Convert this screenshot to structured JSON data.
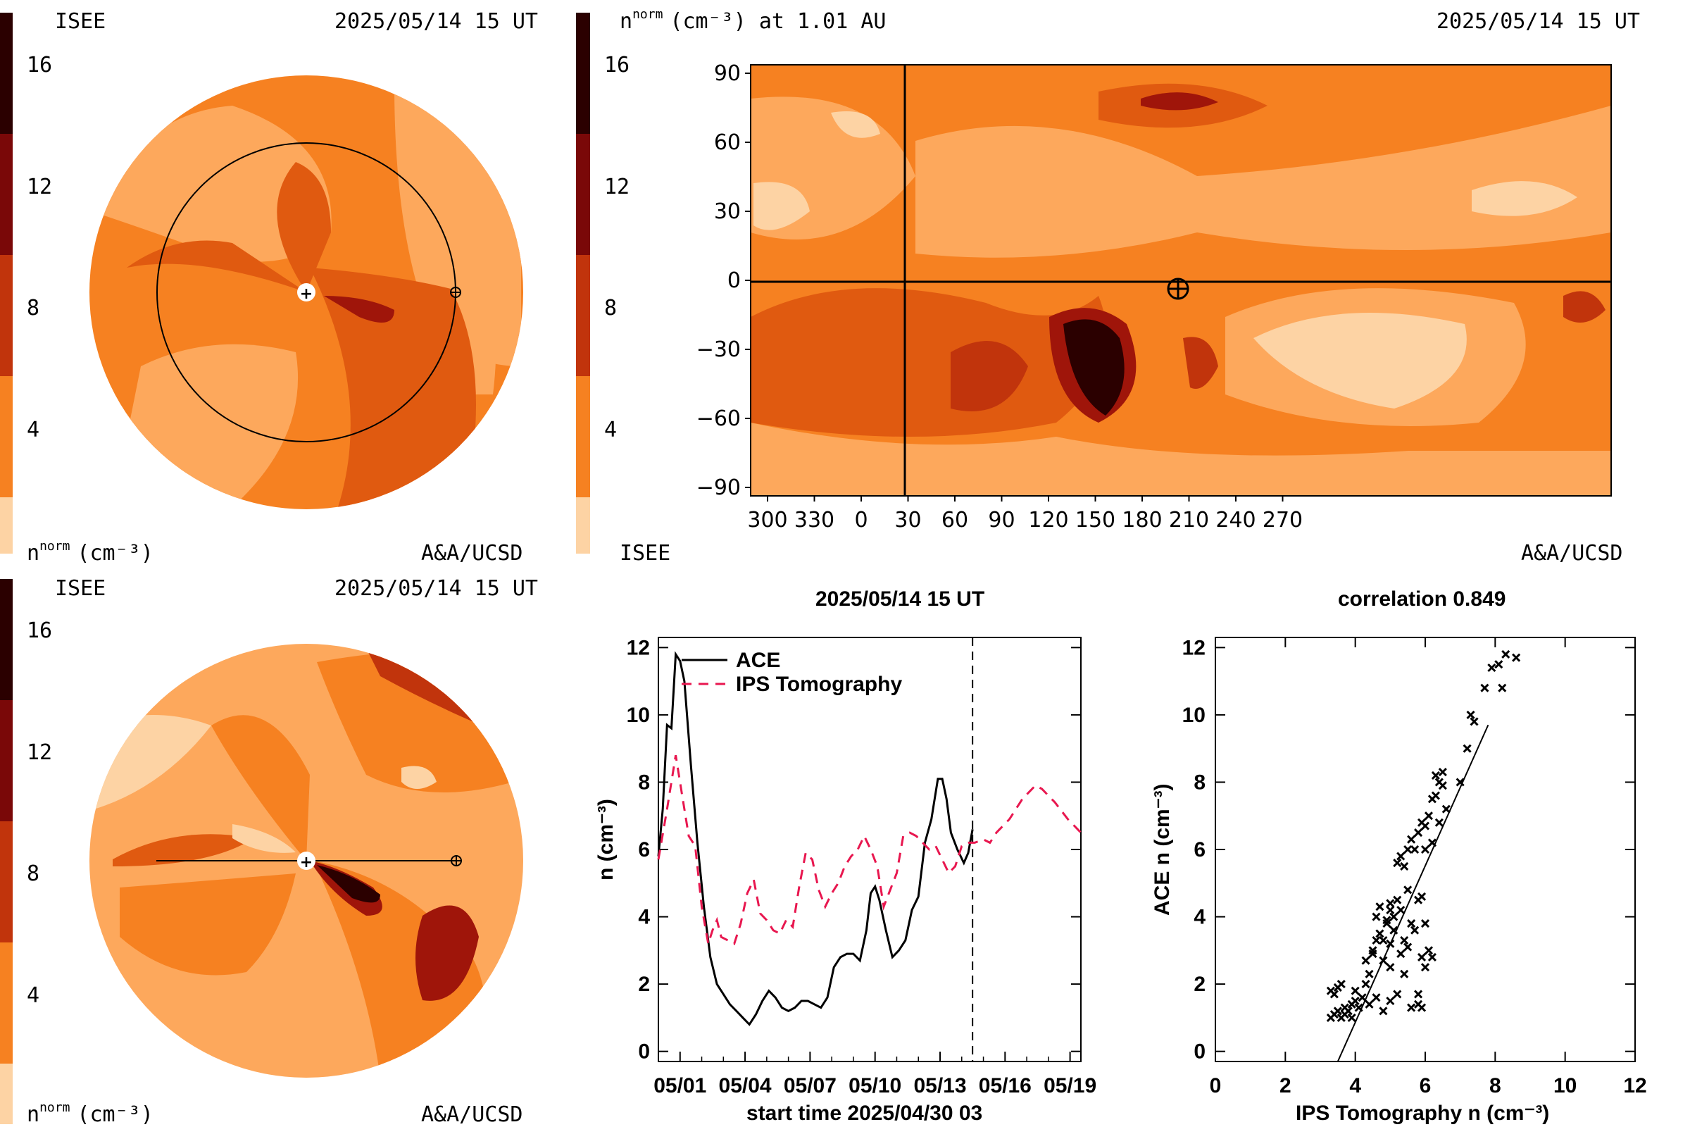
{
  "colors": {
    "scale": [
      "#fdd3a4",
      "#fda85c",
      "#f68121",
      "#e05a10",
      "#c1340c",
      "#9f150a",
      "#7a0808",
      "#520404",
      "#2b0000"
    ],
    "ips_line": "#e8174f",
    "ace_line": "#000000"
  },
  "panels": {
    "top_left": {
      "org": "ISEE",
      "date": "2025/05/14 15 UT",
      "credit": "A&A/UCSD",
      "unit": "n",
      "unit_sup": "norm",
      "unit_tail": "(cm⁻³)",
      "scale_ticks": [
        "16",
        "12",
        "8",
        "4"
      ]
    },
    "top_right": {
      "title_n": "n",
      "title_sup": "norm",
      "title_tail": "(cm⁻³) at 1.01 AU",
      "date": "2025/05/14 15 UT",
      "org": "ISEE",
      "credit": "A&A/UCSD",
      "scale_ticks": [
        "16",
        "12",
        "8",
        "4"
      ],
      "x_ticks": [
        "300",
        "330",
        "0",
        "30",
        "60",
        "90",
        "120",
        "150",
        "180",
        "210",
        "240",
        "270"
      ],
      "y_ticks": [
        "90",
        "60",
        "30",
        "0",
        "−30",
        "−60",
        "−90"
      ]
    },
    "bottom_left": {
      "org": "ISEE",
      "date": "2025/05/14 15 UT",
      "credit": "A&A/UCSD",
      "unit": "n",
      "unit_sup": "norm",
      "unit_tail": "(cm⁻³)",
      "scale_ticks": [
        "16",
        "12",
        "8",
        "4"
      ]
    }
  },
  "chart_data": [
    {
      "type": "line",
      "title": "2025/05/14 15 UT",
      "xlabel": "start time 2025/04/30 03",
      "ylabel": "n (cm⁻³)",
      "x_ticks": [
        "05/01",
        "05/04",
        "05/07",
        "05/10",
        "05/13",
        "05/16",
        "05/19"
      ],
      "y_ticks": [
        "0",
        "2",
        "4",
        "6",
        "8",
        "10",
        "12"
      ],
      "xlim": [
        0,
        19.5
      ],
      "ylim": [
        -0.3,
        12.3
      ],
      "marker_day": 14.5,
      "series": [
        {
          "name": "ACE",
          "style": "solid",
          "points": [
            [
              0,
              5.8
            ],
            [
              0.2,
              7.2
            ],
            [
              0.4,
              9.7
            ],
            [
              0.6,
              9.6
            ],
            [
              0.8,
              11.8
            ],
            [
              1.0,
              11.6
            ],
            [
              1.2,
              11.0
            ],
            [
              1.5,
              8.5
            ],
            [
              1.8,
              6.2
            ],
            [
              2.1,
              4.3
            ],
            [
              2.4,
              2.8
            ],
            [
              2.7,
              2.0
            ],
            [
              3.0,
              1.7
            ],
            [
              3.3,
              1.4
            ],
            [
              3.6,
              1.2
            ],
            [
              3.9,
              1.0
            ],
            [
              4.2,
              0.8
            ],
            [
              4.5,
              1.1
            ],
            [
              4.8,
              1.5
            ],
            [
              5.1,
              1.8
            ],
            [
              5.4,
              1.6
            ],
            [
              5.7,
              1.3
            ],
            [
              6.0,
              1.2
            ],
            [
              6.3,
              1.3
            ],
            [
              6.6,
              1.5
            ],
            [
              6.9,
              1.5
            ],
            [
              7.2,
              1.4
            ],
            [
              7.5,
              1.3
            ],
            [
              7.8,
              1.6
            ],
            [
              8.1,
              2.5
            ],
            [
              8.4,
              2.8
            ],
            [
              8.7,
              2.9
            ],
            [
              9.0,
              2.9
            ],
            [
              9.3,
              2.7
            ],
            [
              9.6,
              3.6
            ],
            [
              9.8,
              4.7
            ],
            [
              10.0,
              4.9
            ],
            [
              10.2,
              4.5
            ],
            [
              10.5,
              3.6
            ],
            [
              10.8,
              2.8
            ],
            [
              11.1,
              3.0
            ],
            [
              11.4,
              3.3
            ],
            [
              11.7,
              4.2
            ],
            [
              12.0,
              4.6
            ],
            [
              12.3,
              6.2
            ],
            [
              12.6,
              6.9
            ],
            [
              12.9,
              8.1
            ],
            [
              13.1,
              8.1
            ],
            [
              13.3,
              7.5
            ],
            [
              13.5,
              6.5
            ],
            [
              13.8,
              6.0
            ],
            [
              14.1,
              5.6
            ],
            [
              14.3,
              5.9
            ],
            [
              14.5,
              6.6
            ]
          ]
        },
        {
          "name": "IPS Tomography",
          "style": "dashed",
          "points": [
            [
              0,
              5.7
            ],
            [
              0.4,
              7.2
            ],
            [
              0.8,
              8.8
            ],
            [
              1.1,
              7.6
            ],
            [
              1.4,
              6.4
            ],
            [
              1.7,
              6.1
            ],
            [
              2.0,
              4.3
            ],
            [
              2.3,
              3.2
            ],
            [
              2.5,
              3.6
            ],
            [
              2.7,
              3.9
            ],
            [
              2.9,
              3.4
            ],
            [
              3.2,
              3.3
            ],
            [
              3.5,
              3.2
            ],
            [
              3.8,
              3.8
            ],
            [
              4.1,
              4.7
            ],
            [
              4.4,
              5.1
            ],
            [
              4.7,
              4.1
            ],
            [
              5.0,
              3.9
            ],
            [
              5.3,
              3.6
            ],
            [
              5.6,
              3.5
            ],
            [
              5.9,
              3.9
            ],
            [
              6.2,
              3.7
            ],
            [
              6.5,
              4.9
            ],
            [
              6.8,
              5.9
            ],
            [
              7.1,
              5.7
            ],
            [
              7.4,
              4.8
            ],
            [
              7.7,
              4.3
            ],
            [
              8.0,
              4.7
            ],
            [
              8.3,
              5.0
            ],
            [
              8.6,
              5.5
            ],
            [
              8.9,
              5.8
            ],
            [
              9.2,
              6.0
            ],
            [
              9.5,
              6.4
            ],
            [
              9.8,
              6.0
            ],
            [
              10.1,
              5.5
            ],
            [
              10.4,
              4.3
            ],
            [
              10.7,
              4.8
            ],
            [
              11.0,
              5.3
            ],
            [
              11.3,
              6.4
            ],
            [
              11.6,
              6.5
            ],
            [
              11.9,
              6.4
            ],
            [
              12.2,
              6.2
            ],
            [
              12.5,
              6.0
            ],
            [
              12.8,
              6.1
            ],
            [
              13.1,
              5.7
            ],
            [
              13.4,
              5.3
            ],
            [
              13.7,
              5.5
            ],
            [
              14.0,
              6.1
            ],
            [
              14.3,
              6.2
            ],
            [
              14.6,
              6.2
            ],
            [
              15.0,
              6.3
            ],
            [
              15.3,
              6.2
            ],
            [
              15.6,
              6.5
            ],
            [
              16.2,
              6.9
            ],
            [
              16.8,
              7.5
            ],
            [
              17.4,
              7.9
            ],
            [
              17.7,
              7.8
            ],
            [
              18.3,
              7.4
            ],
            [
              18.9,
              6.9
            ],
            [
              19.5,
              6.5
            ]
          ]
        }
      ]
    },
    {
      "type": "scatter",
      "title": "correlation 0.849",
      "xlabel": "IPS Tomography n (cm⁻³)",
      "ylabel": "ACE n (cm⁻³)",
      "x_ticks": [
        "0",
        "2",
        "4",
        "6",
        "8",
        "10",
        "12"
      ],
      "y_ticks": [
        "0",
        "2",
        "4",
        "6",
        "8",
        "10",
        "12"
      ],
      "xlim": [
        0,
        12
      ],
      "ylim": [
        -0.3,
        12.3
      ],
      "fit": [
        [
          3.5,
          -0.3
        ],
        [
          7.8,
          9.7
        ]
      ],
      "points": [
        [
          3.3,
          1.8
        ],
        [
          3.4,
          1.7
        ],
        [
          3.5,
          1.9
        ],
        [
          3.3,
          1.0
        ],
        [
          3.4,
          1.1
        ],
        [
          3.5,
          1.2
        ],
        [
          3.6,
          1.0
        ],
        [
          3.7,
          1.3
        ],
        [
          3.8,
          1.2
        ],
        [
          3.9,
          1.4
        ],
        [
          4.0,
          1.5
        ],
        [
          4.1,
          1.3
        ],
        [
          3.6,
          2.0
        ],
        [
          3.7,
          1.1
        ],
        [
          3.9,
          1.0
        ],
        [
          4.0,
          1.8
        ],
        [
          4.2,
          1.6
        ],
        [
          4.3,
          2.0
        ],
        [
          4.4,
          2.3
        ],
        [
          4.5,
          2.9
        ],
        [
          4.6,
          3.3
        ],
        [
          4.7,
          3.5
        ],
        [
          4.8,
          3.3
        ],
        [
          4.9,
          3.8
        ],
        [
          5.0,
          3.2
        ],
        [
          5.1,
          4.0
        ],
        [
          4.6,
          4.0
        ],
        [
          4.7,
          4.3
        ],
        [
          5.0,
          4.4
        ],
        [
          5.2,
          4.5
        ],
        [
          5.3,
          4.2
        ],
        [
          5.5,
          4.8
        ],
        [
          5.6,
          3.8
        ],
        [
          5.7,
          3.6
        ],
        [
          5.8,
          4.5
        ],
        [
          5.9,
          4.6
        ],
        [
          6.0,
          3.8
        ],
        [
          6.1,
          3.0
        ],
        [
          6.2,
          2.8
        ],
        [
          5.9,
          2.8
        ],
        [
          6.0,
          2.5
        ],
        [
          5.8,
          1.7
        ],
        [
          5.6,
          1.3
        ],
        [
          5.8,
          1.4
        ],
        [
          5.9,
          1.3
        ],
        [
          5.4,
          2.3
        ],
        [
          5.2,
          1.7
        ],
        [
          5.0,
          1.5
        ],
        [
          4.8,
          1.2
        ],
        [
          4.6,
          1.6
        ],
        [
          4.4,
          1.4
        ],
        [
          4.3,
          2.7
        ],
        [
          4.5,
          3.0
        ],
        [
          4.8,
          2.7
        ],
        [
          5.0,
          2.5
        ],
        [
          5.3,
          2.9
        ],
        [
          5.5,
          3.1
        ],
        [
          5.4,
          3.3
        ],
        [
          5.2,
          5.6
        ],
        [
          5.3,
          5.8
        ],
        [
          5.4,
          5.5
        ],
        [
          5.5,
          6.0
        ],
        [
          5.6,
          6.3
        ],
        [
          5.7,
          6.0
        ],
        [
          5.8,
          6.5
        ],
        [
          5.9,
          6.8
        ],
        [
          6.0,
          6.7
        ],
        [
          6.1,
          7.0
        ],
        [
          6.2,
          7.5
        ],
        [
          6.3,
          7.6
        ],
        [
          6.4,
          8.0
        ],
        [
          6.5,
          8.3
        ],
        [
          6.3,
          8.2
        ],
        [
          6.4,
          6.8
        ],
        [
          6.2,
          6.2
        ],
        [
          6.0,
          6.0
        ],
        [
          6.5,
          7.9
        ],
        [
          6.6,
          7.2
        ],
        [
          7.0,
          8.0
        ],
        [
          7.2,
          9.0
        ],
        [
          7.3,
          10.0
        ],
        [
          7.4,
          9.8
        ],
        [
          7.7,
          10.8
        ],
        [
          7.9,
          11.4
        ],
        [
          8.1,
          11.5
        ],
        [
          8.2,
          10.8
        ],
        [
          8.6,
          11.7
        ],
        [
          8.3,
          11.8
        ],
        [
          5.0,
          4.2
        ],
        [
          4.9,
          3.9
        ],
        [
          5.1,
          3.6
        ]
      ]
    }
  ]
}
